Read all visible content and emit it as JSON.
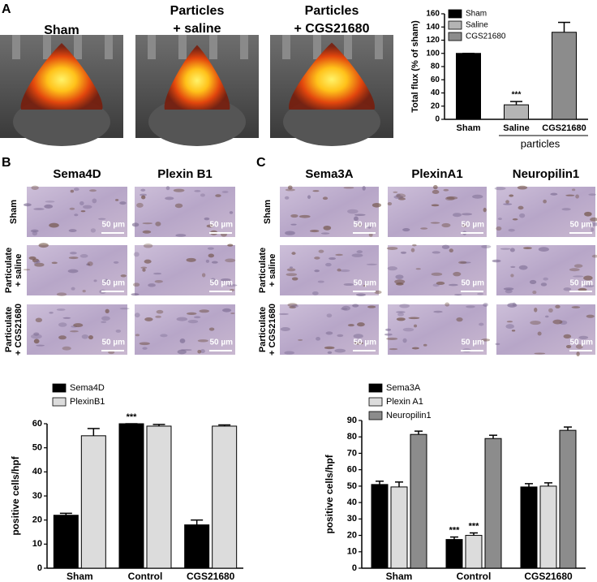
{
  "figure": {
    "panel_a": {
      "letter": "A",
      "image_titles": [
        [
          "Sham"
        ],
        [
          "Particles",
          "+ saline"
        ],
        [
          "Particles",
          "+ CGS21680"
        ]
      ]
    },
    "panel_b": {
      "letter": "B",
      "columns": [
        "Sema4D",
        "Plexin B1"
      ],
      "rows": [
        [
          "Sham"
        ],
        [
          "Particulate",
          "+ saline"
        ],
        [
          "Particulate",
          "+ CGS21680"
        ]
      ],
      "scale_bars": [
        [
          "50 µm",
          "50 µm"
        ],
        [
          "50 µm",
          "50 µm"
        ],
        [
          "50 µm",
          "50 µm"
        ]
      ]
    },
    "panel_c": {
      "letter": "C",
      "columns": [
        "Sema3A",
        "PlexinA1",
        "Neuropilin1"
      ],
      "rows": [
        [
          "Sham"
        ],
        [
          "Particulate",
          "+ saline"
        ],
        [
          "Particulate",
          "+ CGS21680"
        ]
      ],
      "scale_bars": [
        [
          "50 µm",
          "50 µm",
          "50 µm"
        ],
        [
          "50 µm",
          "50 µm",
          "50 µm"
        ],
        [
          "50 µm",
          "50 µm",
          "50 µm"
        ]
      ]
    }
  },
  "chart_data": [
    {
      "type": "bar",
      "y_label": "Total flux (% of sham)",
      "categories": [
        "Sham",
        "Saline",
        "CGS21680"
      ],
      "group_label": "particles",
      "series": [
        {
          "name": "Sham",
          "color": "#000000",
          "values": [
            100,
            null,
            null
          ],
          "errors": [
            0,
            null,
            null
          ],
          "annotations": [
            null,
            null,
            null
          ]
        },
        {
          "name": "Saline",
          "color": "#b4b4b4",
          "values": [
            null,
            22,
            null
          ],
          "errors": [
            null,
            5,
            null
          ],
          "annotations": [
            null,
            "***",
            null
          ]
        },
        {
          "name": "CGS21680",
          "color": "#8c8c8c",
          "values": [
            null,
            null,
            132
          ],
          "errors": [
            null,
            null,
            15
          ],
          "annotations": [
            null,
            null,
            null
          ]
        }
      ],
      "ylim": [
        0,
        160
      ],
      "yticks": [
        0,
        20,
        40,
        60,
        80,
        100,
        120,
        140,
        160
      ],
      "legend": "top-left"
    },
    {
      "type": "bar",
      "y_label": "positive cells/hpf",
      "categories": [
        "Sham",
        "Control",
        "CGS21680"
      ],
      "series": [
        {
          "name": "Sema4D",
          "color": "#000000",
          "values": [
            22,
            60,
            18
          ],
          "errors": [
            0.8,
            0,
            2
          ],
          "annotations": [
            null,
            "***",
            null
          ]
        },
        {
          "name": "PlexinB1",
          "color": "#dcdcdc",
          "values": [
            55,
            59,
            59
          ],
          "errors": [
            3,
            0.7,
            0.5
          ],
          "annotations": [
            null,
            null,
            null
          ]
        }
      ],
      "ylim": [
        0,
        60
      ],
      "yticks": [
        0,
        10,
        20,
        30,
        40,
        50,
        60
      ],
      "legend": "above"
    },
    {
      "type": "bar",
      "y_label": "positive cells/hpf",
      "categories": [
        "Sham",
        "Control",
        "CGS21680"
      ],
      "series": [
        {
          "name": "Sema3A",
          "color": "#000000",
          "values": [
            51,
            17.5,
            49.5
          ],
          "errors": [
            2,
            1.5,
            2
          ],
          "annotations": [
            null,
            "***",
            null
          ]
        },
        {
          "name": "Plexin A1",
          "color": "#dcdcdc",
          "values": [
            49.5,
            20,
            50
          ],
          "errors": [
            3,
            1.5,
            2
          ],
          "annotations": [
            null,
            "***",
            null
          ]
        },
        {
          "name": "Neuropilin1",
          "color": "#8c8c8c",
          "values": [
            81.5,
            79,
            84
          ],
          "errors": [
            2,
            2,
            2
          ],
          "annotations": [
            null,
            null,
            null
          ]
        }
      ],
      "ylim": [
        0,
        90
      ],
      "yticks": [
        0,
        10,
        20,
        30,
        40,
        50,
        60,
        70,
        80,
        90
      ],
      "legend": "above"
    }
  ]
}
